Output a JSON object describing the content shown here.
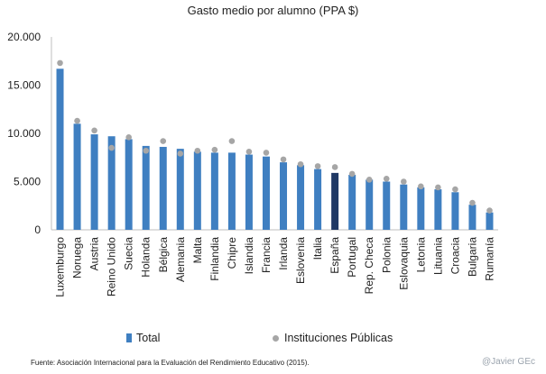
{
  "chart_data": {
    "type": "bar",
    "title": "Gasto medio por alumno (PPA $)",
    "ylim": [
      0,
      20000
    ],
    "yticks": [
      "0",
      "5.000",
      "10.000",
      "15.000",
      "20.000"
    ],
    "ytick_values": [
      0,
      5000,
      10000,
      15000,
      20000
    ],
    "categories": [
      "Luxemburgo",
      "Noruega",
      "Austria",
      "Reino Unido",
      "Suecia",
      "Holanda",
      "Bélgica",
      "Alemania",
      "Malta",
      "Finlandia",
      "Chipre",
      "Islandia",
      "Francia",
      "Irlanda",
      "Eslovenia",
      "Italia",
      "España",
      "Portugal",
      "Rep. Checa",
      "Polonia",
      "Eslovaquia",
      "Letonia",
      "Lituania",
      "Croacia",
      "Bulgaria",
      "Rumanía"
    ],
    "series": [
      {
        "name": "Total",
        "type": "bar",
        "color": "#3f7fc1",
        "highlight_color": "#1f3864",
        "highlight_index": 16,
        "values": [
          16700,
          11000,
          9900,
          9700,
          9400,
          8700,
          8600,
          8400,
          8100,
          8000,
          8000,
          7800,
          7600,
          7000,
          6700,
          6300,
          5900,
          5700,
          5200,
          5000,
          4700,
          4400,
          4200,
          3900,
          2600,
          1800
        ]
      },
      {
        "name": "Instituciones Públicas",
        "type": "scatter",
        "color": "#a6a6a6",
        "values": [
          17300,
          11300,
          10300,
          8500,
          9600,
          8200,
          9200,
          7900,
          8200,
          8300,
          9200,
          8100,
          8000,
          7300,
          6800,
          6600,
          6500,
          5800,
          5200,
          5300,
          5000,
          4500,
          4400,
          4200,
          2800,
          2000
        ]
      }
    ],
    "legend_position": "bottom",
    "grid": false
  },
  "footer": {
    "source": "Fuente:  Asociación Internacional para la Evaluación del Rendimiento Educativo (2015).",
    "credit": "@Javier GEc"
  }
}
